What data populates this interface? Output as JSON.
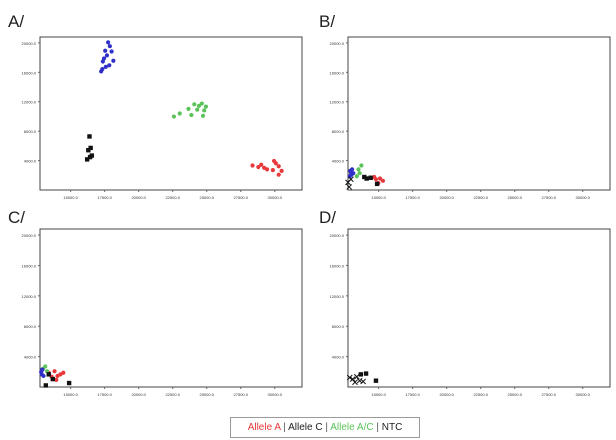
{
  "legend": {
    "items": [
      {
        "label": "Allele A",
        "color": "#e8383b"
      },
      {
        "label": "Allele C",
        "color": "#222222"
      },
      {
        "label": "Allele A/C",
        "color": "#5cc35a"
      },
      {
        "label": "NTC",
        "color": "#222222"
      }
    ],
    "separator": "|"
  },
  "chart_data": [
    {
      "type": "scatter",
      "panel": "A/",
      "xlim": [
        0,
        45000
      ],
      "ylim": [
        0,
        20000
      ],
      "x_ticks": [
        "15000.0",
        "17500.0",
        "20000.0",
        "22500.0",
        "25000.0",
        "27500.0",
        "30000.0"
      ],
      "y_ticks": [
        "4000.0",
        "8000.0",
        "12000.0",
        "16000.0",
        "20000.0"
      ],
      "series": [
        {
          "name": "Allele A",
          "color": "#e8383b",
          "marker": "circle",
          "points": [
            [
              36500,
              3200
            ],
            [
              37500,
              3000
            ],
            [
              38500,
              2900
            ],
            [
              39000,
              2700
            ],
            [
              40000,
              2600
            ],
            [
              40500,
              3500
            ],
            [
              41000,
              3100
            ],
            [
              41500,
              2500
            ],
            [
              41000,
              2000
            ],
            [
              38000,
              3300
            ],
            [
              40200,
              3800
            ]
          ]
        },
        {
          "name": "Allele A/C",
          "color": "#5cc35a",
          "marker": "circle",
          "points": [
            [
              23000,
              9600
            ],
            [
              24000,
              10000
            ],
            [
              25500,
              10600
            ],
            [
              26000,
              9800
            ],
            [
              26500,
              11200
            ],
            [
              27000,
              10500
            ],
            [
              27300,
              11000
            ],
            [
              27800,
              11300
            ],
            [
              28200,
              10400
            ],
            [
              28500,
              10900
            ],
            [
              28000,
              9700
            ]
          ]
        },
        {
          "name": "Allele C",
          "color": "#3030c8",
          "marker": "circle",
          "points": [
            [
              10500,
              15500
            ],
            [
              10800,
              16800
            ],
            [
              11000,
              17200
            ],
            [
              11200,
              18200
            ],
            [
              11500,
              17600
            ],
            [
              11700,
              19300
            ],
            [
              12000,
              18800
            ],
            [
              12300,
              18100
            ],
            [
              12600,
              16900
            ],
            [
              11900,
              16300
            ],
            [
              10700,
              15800
            ],
            [
              11300,
              16100
            ]
          ]
        },
        {
          "name": "NTC",
          "color": "#111111",
          "marker": "square",
          "points": [
            [
              8500,
              7000
            ],
            [
              8700,
              5500
            ],
            [
              8300,
              5200
            ],
            [
              8900,
              4500
            ],
            [
              8100,
              4000
            ],
            [
              8600,
              4300
            ]
          ]
        }
      ]
    },
    {
      "type": "scatter",
      "panel": "B/",
      "xlim": [
        0,
        45000
      ],
      "ylim": [
        0,
        20000
      ],
      "x_ticks": [
        "15000.0",
        "17500.0",
        "20000.0",
        "22500.0",
        "25000.0",
        "27500.0",
        "30000.0"
      ],
      "y_ticks": [
        "4000.0",
        "8000.0",
        "12000.0",
        "16000.0",
        "20000.0"
      ],
      "series": [
        {
          "name": "Allele A",
          "color": "#e8383b",
          "marker": "circle",
          "points": [
            [
              4000,
              1600
            ],
            [
              4500,
              1700
            ],
            [
              5500,
              1500
            ],
            [
              6000,
              1200
            ],
            [
              5200,
              900
            ],
            [
              4800,
              1400
            ]
          ]
        },
        {
          "name": "Allele A/C",
          "color": "#5cc35a",
          "marker": "circle",
          "points": [
            [
              1500,
              1800
            ],
            [
              2000,
              2200
            ],
            [
              2300,
              3200
            ],
            [
              1800,
              2700
            ]
          ]
        },
        {
          "name": "Allele C",
          "color": "#3030c8",
          "marker": "circle",
          "points": [
            [
              300,
              1800
            ],
            [
              500,
              2300
            ],
            [
              700,
              2700
            ],
            [
              900,
              2200
            ],
            [
              600,
              2000
            ],
            [
              400,
              2500
            ]
          ]
        },
        {
          "name": "NTC",
          "color": "#111111",
          "marker": "square",
          "points": [
            [
              2800,
              1700
            ],
            [
              3200,
              1500
            ],
            [
              5000,
              800
            ],
            [
              3900,
              1600
            ]
          ]
        },
        {
          "name": "NTC",
          "color": "#111111",
          "marker": "cross",
          "points": [
            [
              0,
              1000
            ],
            [
              500,
              1400
            ],
            [
              200,
              400
            ]
          ]
        }
      ]
    },
    {
      "type": "scatter",
      "panel": "C/",
      "xlim": [
        0,
        45000
      ],
      "ylim": [
        0,
        20000
      ],
      "x_ticks": [
        "15000.0",
        "17500.0",
        "20000.0",
        "22500.0",
        "25000.0",
        "27500.0",
        "30000.0"
      ],
      "y_ticks": [
        "4000.0",
        "8000.0",
        "12000.0",
        "16000.0",
        "20000.0"
      ],
      "series": [
        {
          "name": "Allele A",
          "color": "#e8383b",
          "marker": "circle",
          "points": [
            [
              1500,
              1800
            ],
            [
              2000,
              1300
            ],
            [
              2500,
              2000
            ],
            [
              3000,
              1400
            ],
            [
              3500,
              1600
            ],
            [
              4000,
              1800
            ],
            [
              2800,
              900
            ]
          ]
        },
        {
          "name": "Allele A/C",
          "color": "#5cc35a",
          "marker": "circle",
          "points": [
            [
              500,
              2300
            ],
            [
              900,
              2600
            ],
            [
              1200,
              2000
            ]
          ]
        },
        {
          "name": "Allele C",
          "color": "#3030c8",
          "marker": "circle",
          "points": [
            [
              200,
              1900
            ],
            [
              400,
              2200
            ],
            [
              300,
              1600
            ],
            [
              600,
              1400
            ]
          ]
        },
        {
          "name": "NTC",
          "color": "#111111",
          "marker": "square",
          "points": [
            [
              1500,
              1600
            ],
            [
              2200,
              1000
            ],
            [
              5000,
              500
            ],
            [
              1000,
              200
            ]
          ]
        }
      ]
    },
    {
      "type": "scatter",
      "panel": "D/",
      "xlim": [
        0,
        45000
      ],
      "ylim": [
        0,
        20000
      ],
      "x_ticks": [
        "15000.0",
        "17500.0",
        "20000.0",
        "22500.0",
        "25000.0",
        "27500.0",
        "30000.0"
      ],
      "y_ticks": [
        "4000.0",
        "8000.0",
        "12000.0",
        "16000.0",
        "20000.0"
      ],
      "series": [
        {
          "name": "NTC",
          "color": "#111111",
          "marker": "square",
          "points": [
            [
              2200,
              1600
            ],
            [
              3100,
              1700
            ],
            [
              4800,
              800
            ]
          ]
        },
        {
          "name": "NTC",
          "color": "#111111",
          "marker": "cross",
          "points": [
            [
              300,
              1200
            ],
            [
              800,
              1000
            ],
            [
              1500,
              1300
            ],
            [
              2000,
              800
            ],
            [
              2600,
              700
            ],
            [
              1200,
              600
            ]
          ]
        }
      ]
    }
  ]
}
